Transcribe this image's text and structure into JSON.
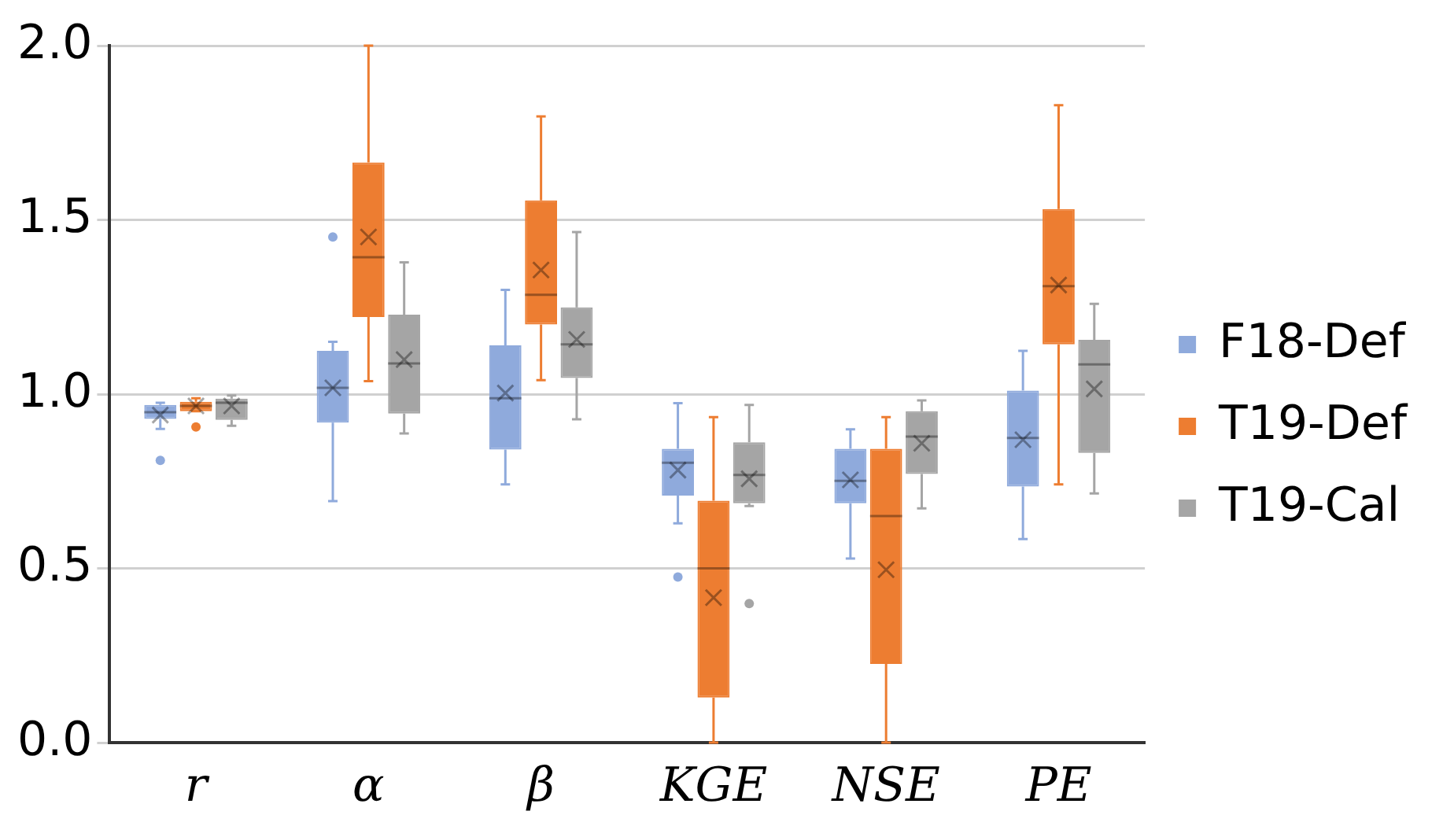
{
  "chart_data": {
    "type": "box",
    "categories": [
      "r",
      "α",
      "β",
      "KGE",
      "NSE",
      "PE"
    ],
    "series": [
      {
        "name": "F18-Def",
        "color": "#8faadc",
        "boxes": [
          {
            "low": 0.9,
            "q1": 0.929,
            "median": 0.948,
            "q3": 0.969,
            "high": 0.975,
            "mean": 0.94,
            "outliers": [
              0.81
            ]
          },
          {
            "low": 0.693,
            "q1": 0.918,
            "median": 1.018,
            "q3": 1.124,
            "high": 1.15,
            "mean": 1.018,
            "outliers": [
              1.451
            ]
          },
          {
            "low": 0.741,
            "q1": 0.841,
            "median": 0.988,
            "q3": 1.14,
            "high": 1.299,
            "mean": 1.003
          },
          {
            "low": 0.629,
            "q1": 0.709,
            "median": 0.803,
            "q3": 0.843,
            "high": 0.974,
            "mean": 0.782,
            "outliers": [
              0.475
            ]
          },
          {
            "low": 0.528,
            "q1": 0.687,
            "median": 0.751,
            "q3": 0.843,
            "high": 0.899,
            "mean": 0.754
          },
          {
            "low": 0.584,
            "q1": 0.735,
            "median": 0.874,
            "q3": 1.01,
            "high": 1.124,
            "mean": 0.869
          }
        ]
      },
      {
        "name": "T19-Def",
        "color": "#ed7d31",
        "boxes": [
          {
            "low": 0.951,
            "q1": 0.951,
            "median": 0.966,
            "q3": 0.978,
            "high": 0.988,
            "mean": 0.966,
            "outliers": [
              0.906
            ]
          },
          {
            "low": 1.037,
            "q1": 1.221,
            "median": 1.393,
            "q3": 1.665,
            "high": 2.0,
            "mean": 1.451
          },
          {
            "low": 1.04,
            "q1": 1.2,
            "median": 1.285,
            "q3": 1.556,
            "high": 1.797,
            "mean": 1.356
          },
          {
            "low": 0.0,
            "q1": 0.129,
            "median": 0.5,
            "q3": 0.694,
            "high": 0.934,
            "mean": 0.416
          },
          {
            "low": 0.0,
            "q1": 0.226,
            "median": 0.65,
            "q3": 0.843,
            "high": 0.934,
            "mean": 0.496
          },
          {
            "low": 0.741,
            "q1": 1.143,
            "median": 1.31,
            "q3": 1.531,
            "high": 1.829,
            "mean": 1.313
          }
        ]
      },
      {
        "name": "T19-Cal",
        "color": "#a5a5a5",
        "boxes": [
          {
            "low": 0.909,
            "q1": 0.926,
            "median": 0.975,
            "q3": 0.987,
            "high": 0.996,
            "mean": 0.966
          },
          {
            "low": 0.887,
            "q1": 0.944,
            "median": 1.088,
            "q3": 1.228,
            "high": 1.378,
            "mean": 1.099
          },
          {
            "low": 0.928,
            "q1": 1.046,
            "median": 1.143,
            "q3": 1.249,
            "high": 1.465,
            "mean": 1.157
          },
          {
            "low": 0.679,
            "q1": 0.687,
            "median": 0.768,
            "q3": 0.862,
            "high": 0.969,
            "mean": 0.757,
            "outliers": [
              0.399
            ]
          },
          {
            "low": 0.672,
            "q1": 0.771,
            "median": 0.878,
            "q3": 0.951,
            "high": 0.982,
            "mean": 0.859
          },
          {
            "low": 0.715,
            "q1": 0.831,
            "median": 1.085,
            "q3": 1.156,
            "high": 1.259,
            "mean": 1.015
          }
        ]
      }
    ],
    "ylim": [
      0,
      2
    ],
    "yticks": [
      {
        "value": 0,
        "label": "0.0"
      },
      0.5,
      {
        "value": 1,
        "label": "1.0"
      },
      1.5,
      {
        "value": 2,
        "label": "2.0"
      }
    ],
    "grid": "y",
    "legend": "right"
  }
}
